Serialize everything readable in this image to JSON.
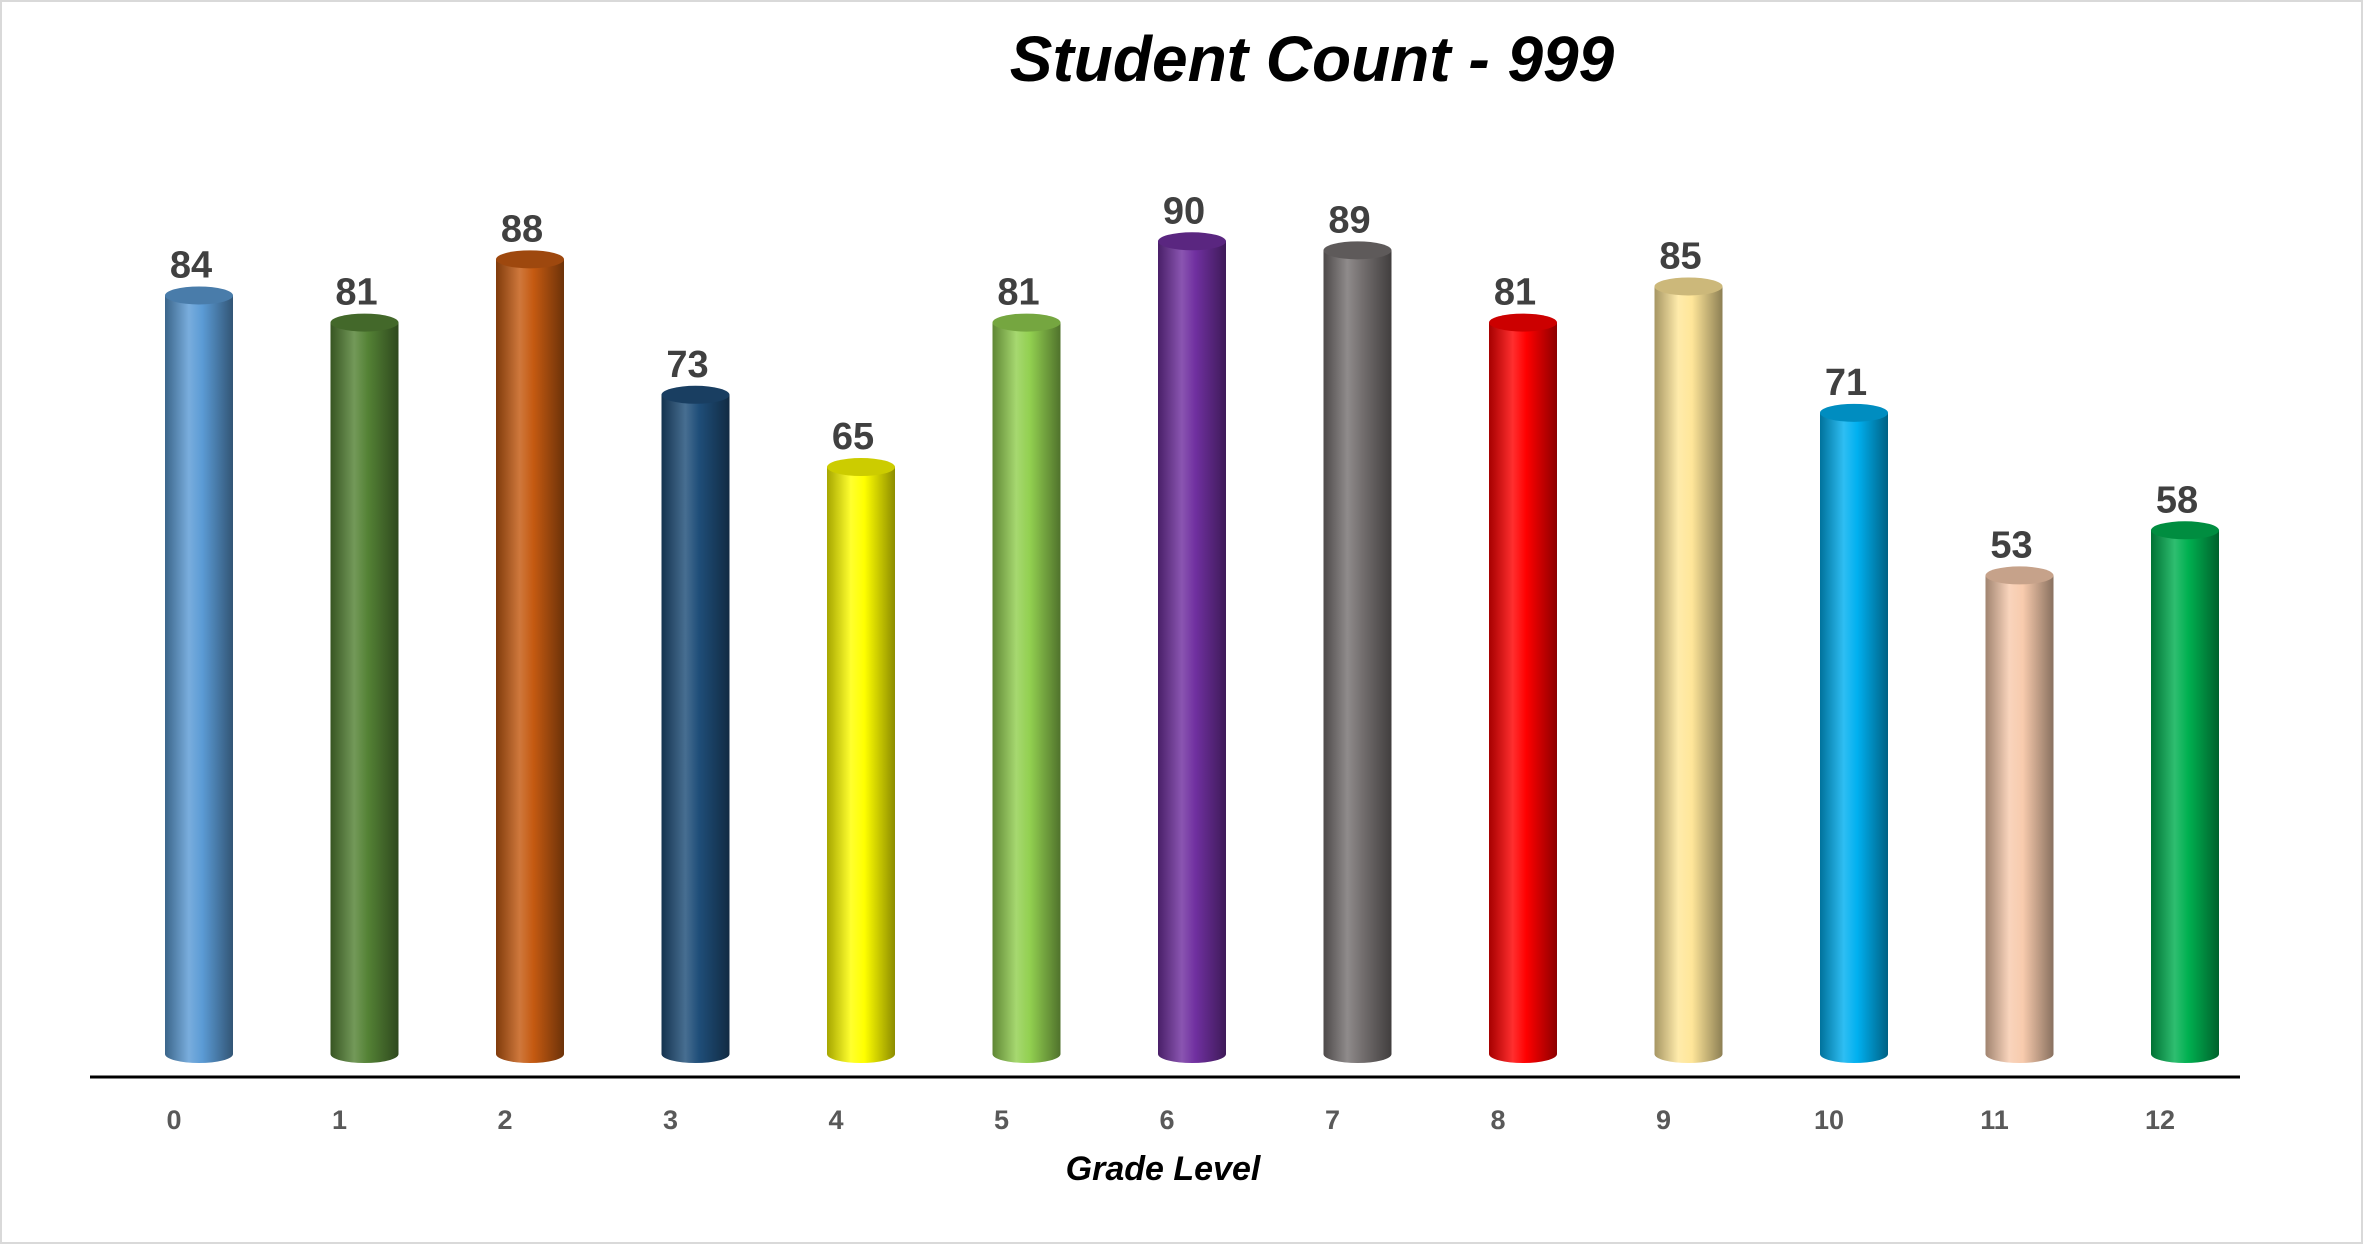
{
  "chart_data": {
    "type": "bar",
    "title": "Student Count - 999",
    "xlabel": "Grade Level",
    "ylabel": "",
    "categories": [
      "0",
      "1",
      "2",
      "3",
      "4",
      "5",
      "6",
      "7",
      "8",
      "9",
      "10",
      "11",
      "12"
    ],
    "values": [
      84,
      81,
      88,
      73,
      65,
      81,
      90,
      89,
      81,
      85,
      71,
      53,
      58
    ],
    "colors": [
      "#5B9BD5",
      "#548235",
      "#C55A11",
      "#1F4E79",
      "#FFFF00",
      "#92D050",
      "#7030A0",
      "#767171",
      "#FF0000",
      "#FFE699",
      "#00B0F0",
      "#F8CBAD",
      "#00B050"
    ],
    "bar_shape": "cylinder",
    "data_labels": true,
    "grid": false,
    "legend": "none"
  }
}
